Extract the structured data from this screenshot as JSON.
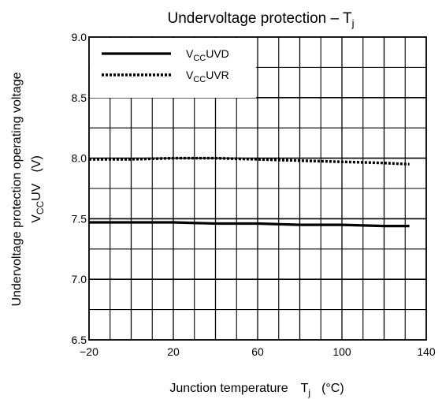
{
  "chart_data": {
    "type": "line",
    "title": "Undervoltage protection – T",
    "title_subscript": "j",
    "xlabel": {
      "main": "Junction temperature",
      "symbol": "T",
      "symbol_sub": "j",
      "unit": "(°C)"
    },
    "ylabel": {
      "line1": "Undervoltage protection operating voltage",
      "line2_main": "V",
      "line2_sub": "CC",
      "line2_rest": "UV",
      "line2_unit": "(V)"
    },
    "xlim": [
      -20,
      140
    ],
    "ylim": [
      6.5,
      9.0
    ],
    "x_ticks": [
      "−20",
      "20",
      "60",
      "100",
      "140"
    ],
    "y_ticks": [
      "6.5",
      "7.0",
      "7.5",
      "8.0",
      "8.5",
      "9.0"
    ],
    "grid": true,
    "legend_position": "top-left",
    "series": [
      {
        "name_main": "V",
        "name_sub": "CC",
        "name_rest": "UVD",
        "style": "solid",
        "x": [
          -20,
          0,
          20,
          40,
          60,
          80,
          100,
          120,
          132
        ],
        "y": [
          7.47,
          7.47,
          7.47,
          7.46,
          7.46,
          7.45,
          7.45,
          7.44,
          7.44
        ]
      },
      {
        "name_main": "V",
        "name_sub": "CC",
        "name_rest": "UVR",
        "style": "dotted",
        "x": [
          -20,
          0,
          20,
          40,
          60,
          80,
          100,
          120,
          132
        ],
        "y": [
          7.99,
          7.99,
          8.0,
          8.0,
          7.99,
          7.98,
          7.97,
          7.96,
          7.95
        ]
      }
    ],
    "colors": {
      "line": "#000000",
      "grid": "#000000",
      "background": "#ffffff"
    }
  }
}
